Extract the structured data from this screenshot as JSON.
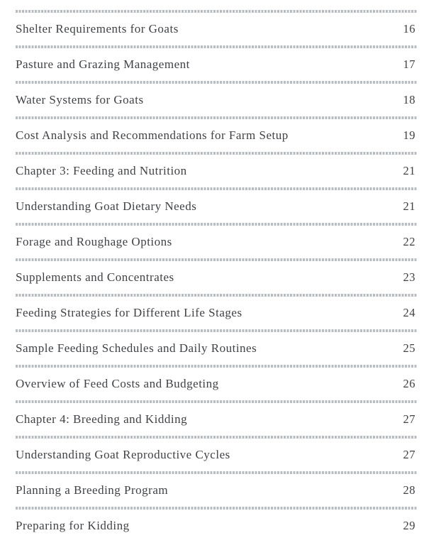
{
  "page": {
    "background": "#ffffff",
    "separator_color": "#b8bdc2",
    "text_color": "#3f4246"
  },
  "toc": {
    "entries": [
      {
        "label": "Shelter Requirements for Goats",
        "page": "16"
      },
      {
        "label": "Pasture and Grazing Management",
        "page": "17"
      },
      {
        "label": "Water Systems for Goats",
        "page": "18"
      },
      {
        "label": "Cost Analysis and Recommendations for Farm Setup",
        "page": "19"
      },
      {
        "label": "Chapter 3: Feeding and Nutrition",
        "page": "21"
      },
      {
        "label": "Understanding Goat Dietary Needs",
        "page": "21"
      },
      {
        "label": "Forage and Roughage Options",
        "page": "22"
      },
      {
        "label": "Supplements and Concentrates",
        "page": "23"
      },
      {
        "label": "Feeding Strategies for Different Life Stages",
        "page": "24"
      },
      {
        "label": "Sample Feeding Schedules and Daily Routines",
        "page": "25"
      },
      {
        "label": "Overview of Feed Costs and Budgeting",
        "page": "26"
      },
      {
        "label": "Chapter 4: Breeding and Kidding",
        "page": "27"
      },
      {
        "label": "Understanding Goat Reproductive Cycles",
        "page": "27"
      },
      {
        "label": "Planning a Breeding Program",
        "page": "28"
      },
      {
        "label": "Preparing for Kidding",
        "page": "29"
      }
    ]
  }
}
